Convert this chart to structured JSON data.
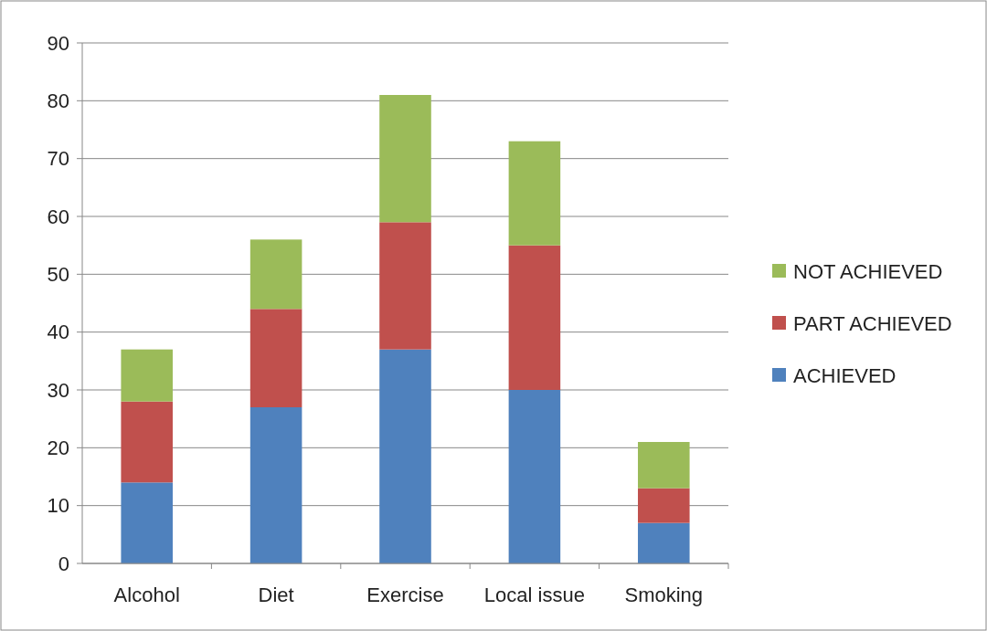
{
  "chart_data": {
    "type": "bar",
    "stacked": true,
    "categories": [
      "Alcohol",
      "Diet",
      "Exercise",
      "Local issue",
      "Smoking"
    ],
    "series": [
      {
        "name": "ACHIEVED",
        "color": "#4f81bd",
        "values": [
          14,
          27,
          37,
          30,
          7
        ]
      },
      {
        "name": "PART ACHIEVED",
        "color": "#c0504d",
        "values": [
          14,
          17,
          22,
          25,
          6
        ]
      },
      {
        "name": "NOT ACHIEVED",
        "color": "#9bbb59",
        "values": [
          9,
          12,
          22,
          18,
          8
        ]
      }
    ],
    "ylim": [
      0,
      90
    ],
    "yticks": [
      0,
      10,
      20,
      30,
      40,
      50,
      60,
      70,
      80,
      90
    ],
    "grid": "y",
    "legend": "right"
  }
}
